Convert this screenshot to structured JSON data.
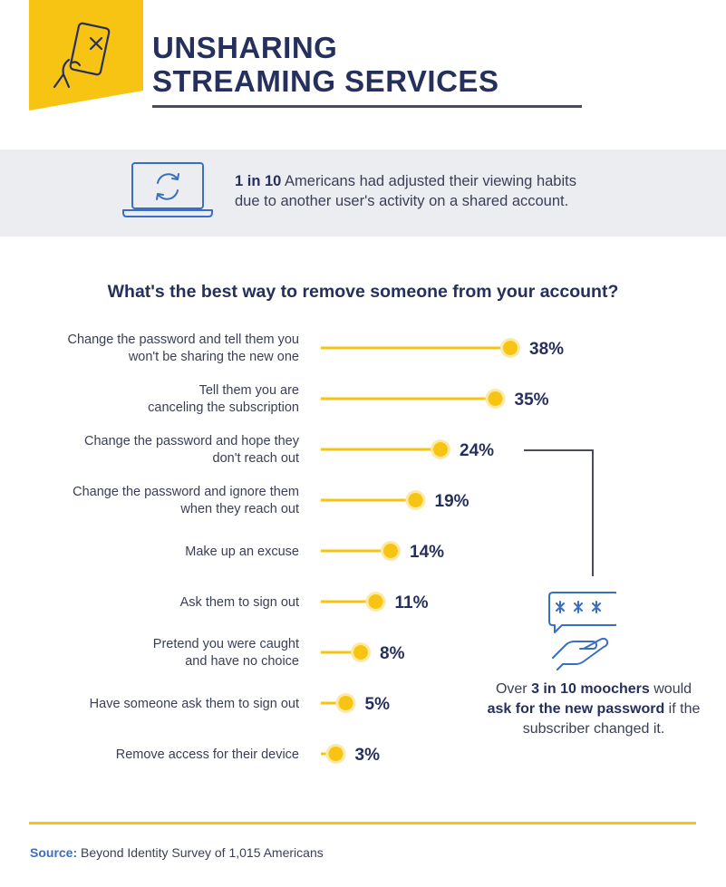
{
  "header": {
    "title_line1": "UNSHARING",
    "title_line2": "STREAMING SERVICES",
    "badge_icon": "phone-cancel-icon"
  },
  "stat": {
    "icon": "laptop-sync-icon",
    "bold": "1 in 10",
    "text_line1_rest": " Americans had adjusted their viewing habits",
    "text_line2": "due to another user's activity on a shared account."
  },
  "chart_data": {
    "type": "bar",
    "title": "What's the best way to remove someone from your account?",
    "categories": [
      [
        "Change the password and tell them you",
        "won't be sharing the new one"
      ],
      [
        "Tell them you are",
        "canceling the subscription"
      ],
      [
        "Change the password and hope they",
        "don't reach out"
      ],
      [
        "Change the password and ignore them",
        "when they reach out"
      ],
      [
        "Make up an excuse"
      ],
      [
        "Ask them to sign out"
      ],
      [
        "Pretend you were caught",
        "and have no choice"
      ],
      [
        "Have someone ask them to sign out"
      ],
      [
        "Remove access for their device"
      ]
    ],
    "values": [
      38,
      35,
      24,
      19,
      14,
      11,
      8,
      5,
      3
    ],
    "value_labels": [
      "38%",
      "35%",
      "24%",
      "19%",
      "14%",
      "11%",
      "8%",
      "5%",
      "3%"
    ],
    "xlim": [
      0,
      38
    ],
    "grid": false,
    "colors": {
      "bar": "#f7c413",
      "dot": "#f7c413",
      "dot_ring": "#fde9a6",
      "text": "#26305c"
    }
  },
  "callout": {
    "icon": "password-hand-icon",
    "prefix": "Over ",
    "bold1": "3 in 10 moochers",
    "mid": " would ",
    "bold2": "ask for the new password",
    "suffix": " if the subscriber changed it."
  },
  "footer": {
    "source_label": "Source:",
    "source_text": " Beyond Identity Survey of 1,015 Americans"
  },
  "colors": {
    "accent": "#f7c413",
    "navy": "#26305c",
    "link_blue": "#3a6ec2",
    "band": "#ecedf1"
  }
}
